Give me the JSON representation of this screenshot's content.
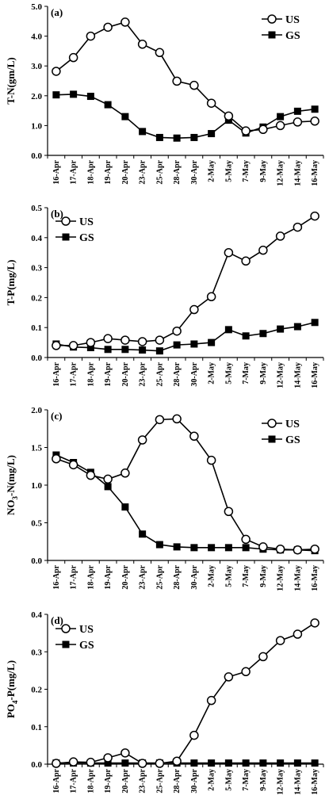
{
  "chart_data": [
    {
      "type": "line",
      "panel_label": "(a)",
      "ylabel": "T-N(gm/L)",
      "ylim": [
        0,
        5
      ],
      "yticks": [
        "0.0",
        "1.0",
        "2.0",
        "3.0",
        "4.0",
        "5.0"
      ],
      "legend_position": "top-right",
      "categories": [
        "16-Apr",
        "17-Apr",
        "18-Apr",
        "19-Apr",
        "20-Apr",
        "23-Apr",
        "25-Apr",
        "28-Apr",
        "30-Apr",
        "2-May",
        "5-May",
        "7-May",
        "9-May",
        "12-May",
        "14-May",
        "16-May"
      ],
      "series": [
        {
          "name": "US",
          "marker": "open-circle",
          "values": [
            2.82,
            3.28,
            4.0,
            4.3,
            4.47,
            3.73,
            3.45,
            2.49,
            2.35,
            1.75,
            1.32,
            0.82,
            0.87,
            1.0,
            1.12,
            1.15
          ]
        },
        {
          "name": "GS",
          "marker": "filled-square",
          "values": [
            2.03,
            2.05,
            1.98,
            1.7,
            1.3,
            0.8,
            0.6,
            0.58,
            0.6,
            0.73,
            1.18,
            0.75,
            0.95,
            1.3,
            1.48,
            1.55
          ]
        }
      ]
    },
    {
      "type": "line",
      "panel_label": "(b)",
      "ylabel": "T-P(mg/L)",
      "ylim": [
        0,
        0.5
      ],
      "yticks": [
        "0.0",
        "0.1",
        "0.2",
        "0.3",
        "0.4",
        "0.5"
      ],
      "legend_position": "top-left",
      "categories": [
        "16-Apr",
        "17-Apr",
        "18-Apr",
        "19-Apr",
        "20-Apr",
        "23-Apr",
        "25-Apr",
        "28-Apr",
        "30-Apr",
        "2-May",
        "5-May",
        "7-May",
        "9-May",
        "12-May",
        "14-May",
        "16-May"
      ],
      "series": [
        {
          "name": "US",
          "marker": "open-circle",
          "values": [
            0.04,
            0.04,
            0.05,
            0.063,
            0.058,
            0.053,
            0.058,
            0.088,
            0.16,
            0.203,
            0.35,
            0.322,
            0.358,
            0.405,
            0.435,
            0.472
          ]
        },
        {
          "name": "GS",
          "marker": "filled-square",
          "values": [
            0.045,
            0.035,
            0.033,
            0.027,
            0.027,
            0.025,
            0.022,
            0.042,
            0.045,
            0.05,
            0.093,
            0.072,
            0.08,
            0.095,
            0.103,
            0.117
          ]
        }
      ]
    },
    {
      "type": "line",
      "panel_label": "(c)",
      "ylabel_parts": [
        "NO",
        "3",
        "-N(mg/L)"
      ],
      "ylim": [
        0,
        2
      ],
      "yticks": [
        "0.0",
        "0.5",
        "1.0",
        "1.5",
        "2.0"
      ],
      "legend_position": "top-right",
      "categories": [
        "16-Apr",
        "17-Apr",
        "18-Apr",
        "19-Apr",
        "20-Apr",
        "23-Apr",
        "25-Apr",
        "28-Apr",
        "30-Apr",
        "2-May",
        "5-May",
        "7-May",
        "9-May",
        "12-May",
        "14-May",
        "16-May"
      ],
      "series": [
        {
          "name": "US",
          "marker": "open-circle",
          "values": [
            1.35,
            1.27,
            1.13,
            1.08,
            1.16,
            1.6,
            1.87,
            1.88,
            1.65,
            1.33,
            0.65,
            0.28,
            0.18,
            0.15,
            0.14,
            0.15
          ]
        },
        {
          "name": "GS",
          "marker": "filled-square",
          "values": [
            1.4,
            1.3,
            1.17,
            0.98,
            0.71,
            0.35,
            0.21,
            0.18,
            0.17,
            0.17,
            0.17,
            0.17,
            0.15,
            0.14,
            0.14,
            0.13
          ]
        }
      ]
    },
    {
      "type": "line",
      "panel_label": "(d)",
      "ylabel_parts": [
        "PO",
        "4",
        "-P(mg/L)"
      ],
      "ylim": [
        0,
        0.4
      ],
      "yticks": [
        "0.0",
        "0.1",
        "0.2",
        "0.3",
        "0.4"
      ],
      "legend_position": "top-left",
      "categories": [
        "16-Apr",
        "17-Apr",
        "18-Apr",
        "19-Apr",
        "20-Apr",
        "23-Apr",
        "25-Apr",
        "28-Apr",
        "30-Apr",
        "2-May",
        "5-May",
        "7-May",
        "9-May",
        "12-May",
        "14-May",
        "16-May"
      ],
      "series": [
        {
          "name": "US",
          "marker": "open-circle",
          "values": [
            0.002,
            0.006,
            0.005,
            0.017,
            0.03,
            0.002,
            0.002,
            0.008,
            0.077,
            0.17,
            0.233,
            0.247,
            0.287,
            0.33,
            0.347,
            0.377
          ]
        },
        {
          "name": "GS",
          "marker": "filled-square",
          "values": [
            0.003,
            0.003,
            0.003,
            0.003,
            0.003,
            0.003,
            0.003,
            0.003,
            0.003,
            0.003,
            0.003,
            0.003,
            0.003,
            0.003,
            0.003,
            0.003
          ]
        }
      ]
    }
  ]
}
